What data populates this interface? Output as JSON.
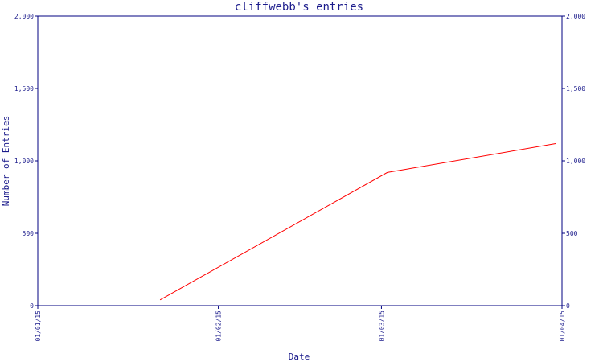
{
  "chart_data": {
    "type": "line",
    "title": "cliffwebb's entries",
    "xlabel": "Date",
    "ylabel": "Number of Entries",
    "x_ticks": [
      "01/01/15",
      "01/02/15",
      "01/03/15",
      "01/04/15"
    ],
    "y_ticks": [
      "0",
      "500",
      "1,000",
      "1,500",
      "2,000"
    ],
    "ylim": [
      0,
      2000
    ],
    "xlim": [
      "2015-01-01",
      "2015-04-01"
    ],
    "series": [
      {
        "x": [
          "2015-01-22",
          "2015-03-02",
          "2015-03-31"
        ],
        "y": [
          40,
          920,
          1120
        ]
      }
    ],
    "grid": false,
    "colors": {
      "axis": "#000080",
      "line": "#ff0000",
      "text": "#1c1c8c"
    }
  }
}
